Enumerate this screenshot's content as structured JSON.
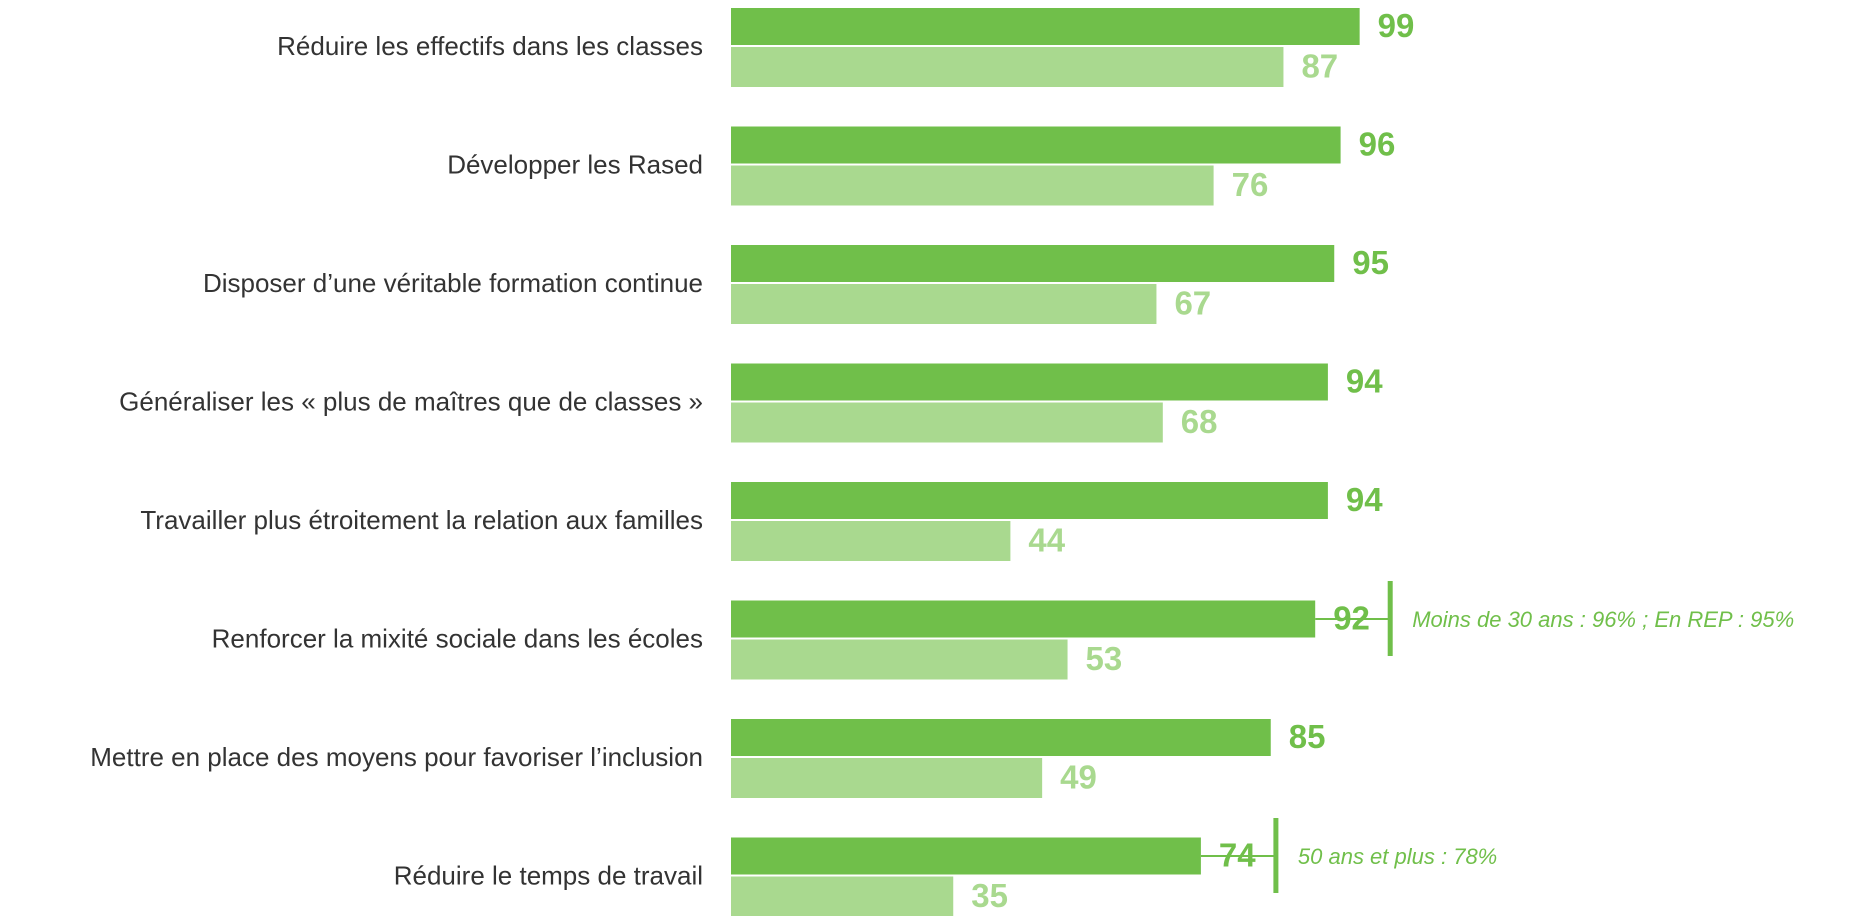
{
  "chart_data": {
    "type": "bar",
    "orientation": "horizontal",
    "categories": [
      "Réduire les effectifs dans les classes",
      "Développer les Rased",
      "Disposer d’une véritable formation continue",
      "Généraliser les « plus de maîtres que de classes »",
      "Travailler plus étroitement la relation aux familles",
      "Renforcer la mixité sociale dans les écoles",
      "Mettre en place des moyens pour favoriser l’inclusion",
      "Réduire le temps de travail"
    ],
    "series": [
      {
        "color": "#70bf4a",
        "values": [
          99,
          96,
          95,
          94,
          94,
          92,
          85,
          74
        ]
      },
      {
        "color": "#a9d98f",
        "values": [
          87,
          76,
          67,
          68,
          44,
          53,
          49,
          35
        ]
      }
    ],
    "xlim": [
      0,
      100
    ],
    "annotations": [
      {
        "category": "Renforcer la mixité sociale dans les écoles",
        "text": "Moins de 30 ans : 96% ; En REP : 95%"
      },
      {
        "category": "Réduire le temps de travail",
        "text": "50 ans et plus : 78%"
      }
    ]
  }
}
